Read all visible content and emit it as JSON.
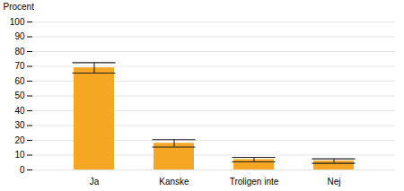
{
  "chart_data": {
    "type": "bar",
    "ylabel": "Procent",
    "categories": [
      "Ja",
      "Kanske",
      "Troligen inte",
      "Nej"
    ],
    "values": [
      69,
      18,
      7,
      6
    ],
    "errors": [
      3.5,
      2.5,
      1.5,
      1.5
    ],
    "color": "#F5A623",
    "ylim": [
      0,
      100
    ],
    "yticks": [
      0,
      10,
      20,
      30,
      40,
      50,
      60,
      70,
      80,
      90,
      100
    ],
    "grid": true
  }
}
